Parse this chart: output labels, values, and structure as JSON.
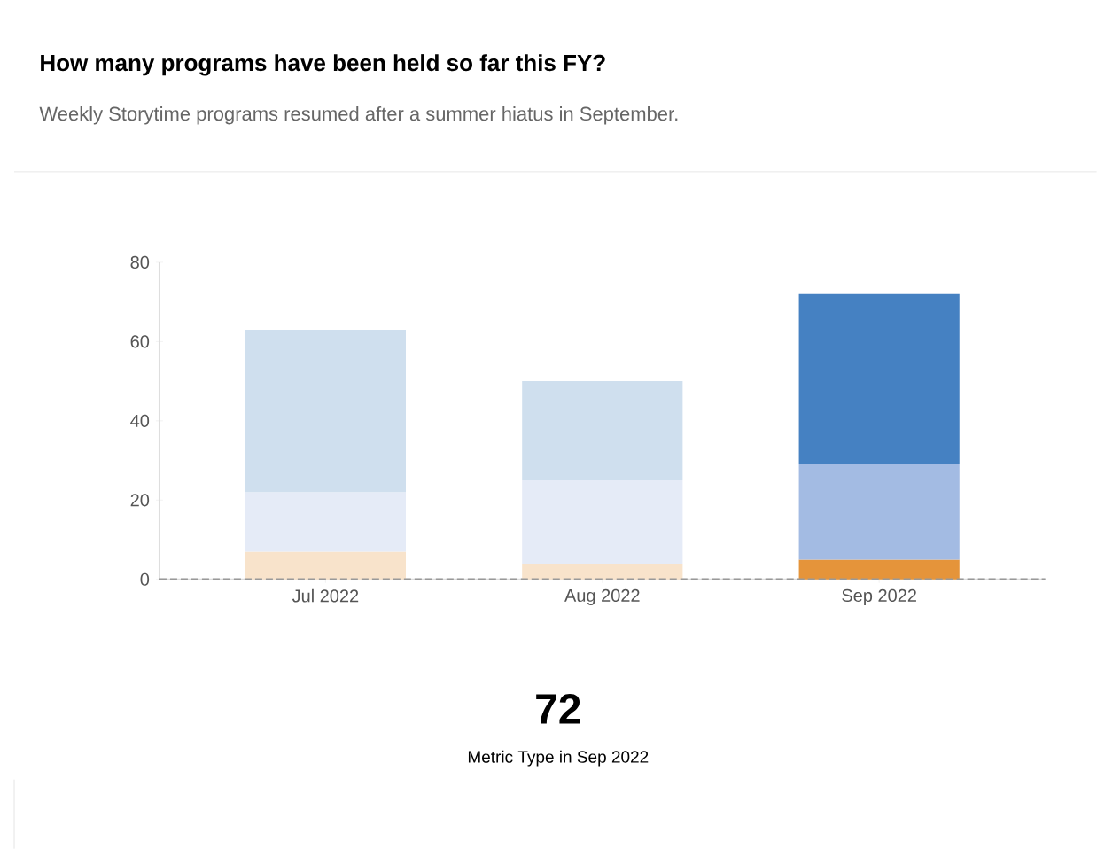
{
  "chart_data": {
    "type": "bar",
    "stacked": true,
    "title": "How many programs have been held so far this FY?",
    "subtitle": "Weekly Storytime programs resumed after a summer hiatus in September.",
    "categories": [
      "Jul 2022",
      "Aug 2022",
      "Sep 2022"
    ],
    "series": [
      {
        "values": [
          7,
          4,
          5
        ],
        "colors": [
          "#f8e3cb",
          "#f8e3cb",
          "#e5943a"
        ]
      },
      {
        "values": [
          15,
          21,
          24
        ],
        "colors": [
          "#e5ebf7",
          "#e5ebf7",
          "#a3bbe3"
        ]
      },
      {
        "values": [
          41,
          25,
          43
        ],
        "colors": [
          "#cfdfee",
          "#cfdfee",
          "#4581c2"
        ]
      }
    ],
    "ylim": [
      0,
      80
    ],
    "yticks": [
      0,
      20,
      40,
      60,
      80
    ],
    "ref_lines": [
      {
        "axis": "y",
        "value": 0,
        "color": "#999999",
        "line_style": "dashed"
      }
    ],
    "annotations": [
      "72",
      "Metric Type in Sep 2022"
    ]
  }
}
